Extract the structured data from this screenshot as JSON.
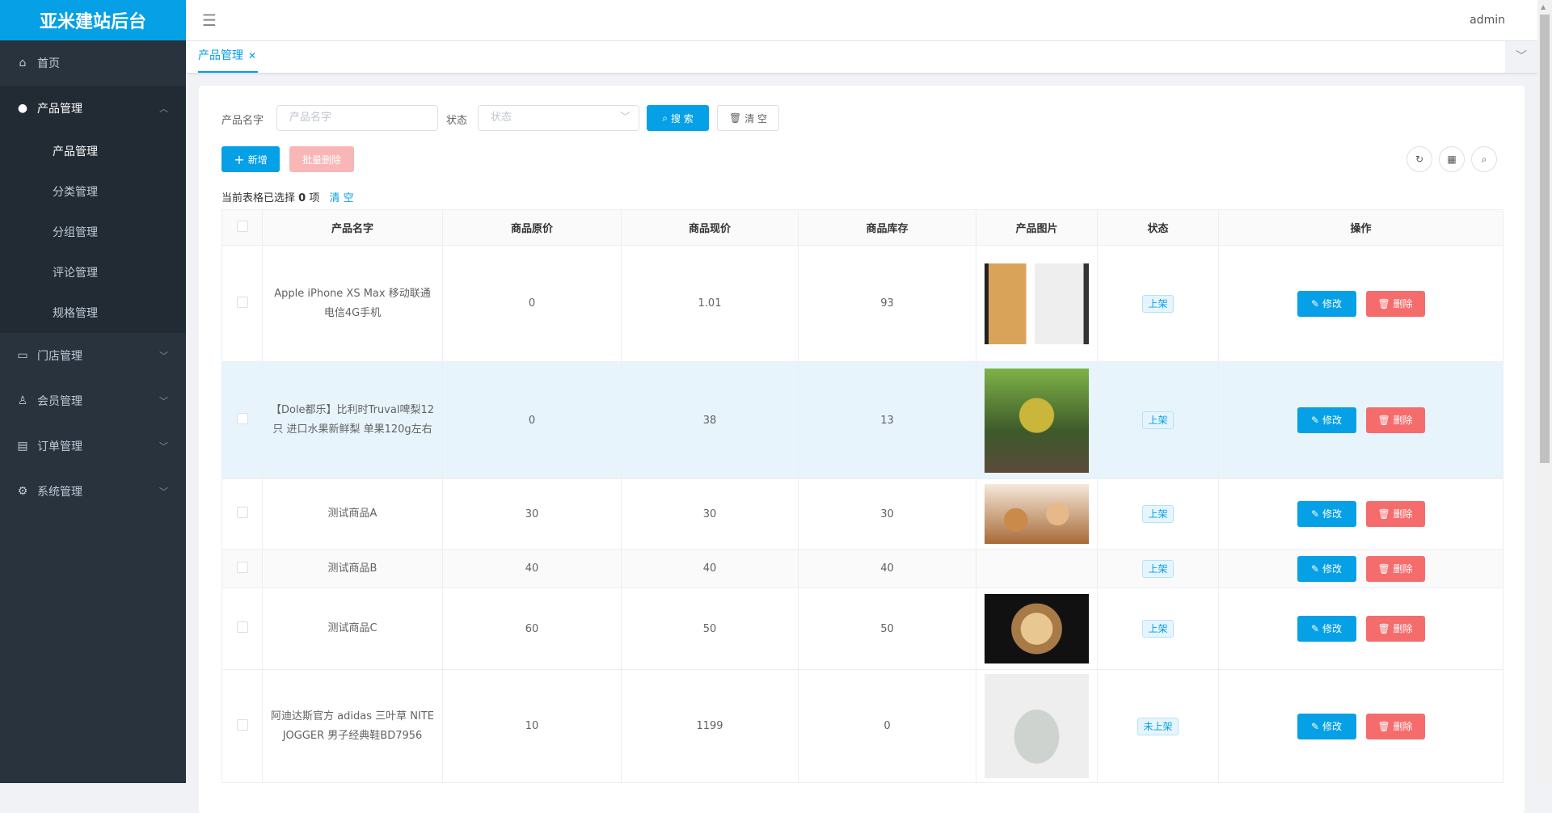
{
  "app": {
    "title": "亚米建站后台",
    "user": "admin"
  },
  "sidebar": {
    "items": [
      {
        "label": "首页",
        "icon": "home-icon"
      },
      {
        "label": "产品管理",
        "icon": "user-icon",
        "children": [
          "产品管理",
          "分类管理",
          "分组管理",
          "评论管理",
          "规格管理"
        ]
      },
      {
        "label": "门店管理",
        "icon": "store-icon"
      },
      {
        "label": "会员管理",
        "icon": "member-icon"
      },
      {
        "label": "订单管理",
        "icon": "order-icon"
      },
      {
        "label": "系统管理",
        "icon": "gear-icon"
      }
    ]
  },
  "tabs": [
    {
      "label": "产品管理",
      "active": true
    }
  ],
  "filters": {
    "name_label": "产品名字",
    "name_placeholder": "产品名字",
    "status_label": "状态",
    "status_placeholder": "状态",
    "search": "搜 索",
    "clear": "清 空"
  },
  "toolbar": {
    "add": "新增",
    "batch_delete": "批量删除"
  },
  "selection": {
    "prefix": "当前表格已选择",
    "count": "0",
    "suffix": "项",
    "clear": "清 空"
  },
  "table": {
    "headers": [
      "产品名字",
      "商品原价",
      "商品现价",
      "商品库存",
      "产品图片",
      "状态",
      "操作"
    ],
    "edit": "修改",
    "delete": "删除",
    "rows": [
      {
        "name": "Apple iPhone XS Max 移动联通电信4G手机",
        "orig": "0",
        "price": "1.01",
        "stock": "93",
        "status": "上架",
        "image": "iphone"
      },
      {
        "name": "【Dole都乐】比利时Truval啤梨12只 进口水果新鲜梨 单果120g左右",
        "orig": "0",
        "price": "38",
        "stock": "13",
        "status": "上架",
        "image": "pear"
      },
      {
        "name": "测试商品A",
        "orig": "30",
        "price": "30",
        "stock": "30",
        "status": "上架",
        "image": "donuts"
      },
      {
        "name": "测试商品B",
        "orig": "40",
        "price": "40",
        "stock": "40",
        "status": "上架",
        "image": ""
      },
      {
        "name": "测试商品C",
        "orig": "60",
        "price": "50",
        "stock": "50",
        "status": "上架",
        "image": "cake"
      },
      {
        "name": "阿迪达斯官方 adidas 三叶草 NITE JOGGER 男子经典鞋BD7956",
        "orig": "10",
        "price": "1199",
        "stock": "0",
        "status": "未上架",
        "image": "shoe"
      }
    ]
  },
  "colors": {
    "primary": "#05a0e6",
    "danger": "#f56c6c",
    "sidebar": "#28333e"
  }
}
